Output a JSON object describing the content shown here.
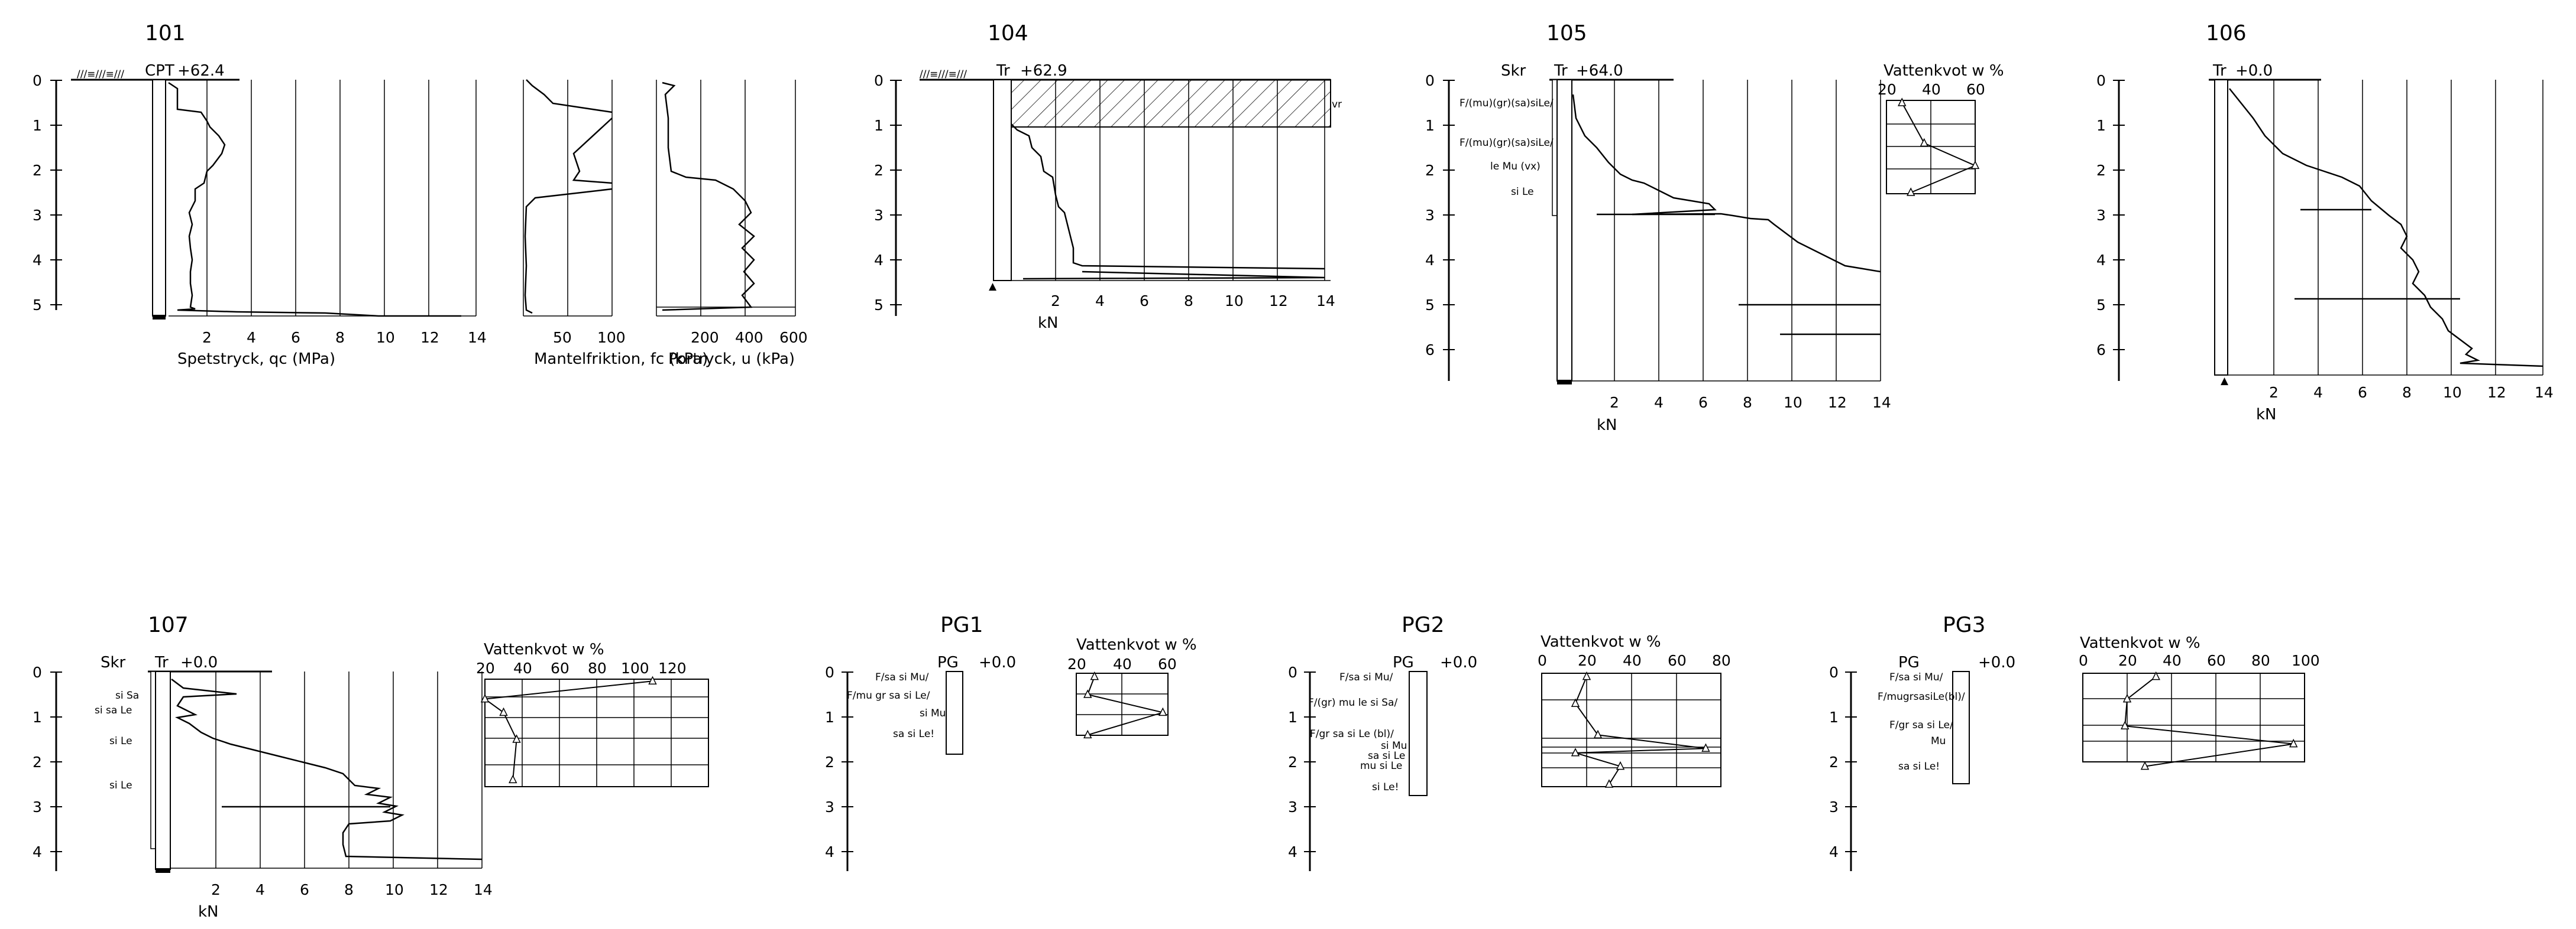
{
  "sheet_title": "",
  "labels": {
    "cpt": "CPT",
    "tr": "Tr",
    "skr": "Skr",
    "pg": "PG",
    "kn": "kN",
    "water": "Vattenkvot  w %",
    "wr": "vr",
    "qc": "Spetstryck, qc (MPa)",
    "fc": "Mantelfriktion, fc (kPa)",
    "u": "Portryck, u (kPa)"
  },
  "soundings": [
    {
      "id": "101",
      "type": "CPT",
      "elevation": "+62.4"
    },
    {
      "id": "104",
      "type": "Tr",
      "elevation": "+62.9"
    },
    {
      "id": "105",
      "type": "Skr/Tr",
      "elevation": "+64.0"
    },
    {
      "id": "106",
      "type": "Tr",
      "elevation": "+0.0"
    },
    {
      "id": "107",
      "type": "Skr/Tr",
      "elevation": "+0.0"
    },
    {
      "id": "PG1",
      "type": "PG",
      "elevation": "+0.0"
    },
    {
      "id": "PG2",
      "type": "PG",
      "elevation": "+0.0"
    },
    {
      "id": "PG3",
      "type": "PG",
      "elevation": "+0.0"
    }
  ],
  "depth_ticks": {
    "b101": [
      "0",
      "1",
      "2",
      "3",
      "4",
      "5"
    ],
    "b104": [
      "0",
      "1",
      "2",
      "3",
      "4",
      "5"
    ],
    "b105": [
      "0",
      "1",
      "2",
      "3",
      "4",
      "5",
      "6"
    ],
    "b106": [
      "0",
      "1",
      "2",
      "3",
      "4",
      "5",
      "6"
    ],
    "b107": [
      "0",
      "1",
      "2",
      "3",
      "4"
    ],
    "pg": [
      "0",
      "1",
      "2",
      "3",
      "4"
    ]
  },
  "x_ticks": {
    "kn": [
      "2",
      "4",
      "6",
      "8",
      "10",
      "12",
      "14"
    ],
    "qc": [
      "2",
      "4",
      "6",
      "8",
      "10",
      "12",
      "14"
    ],
    "fc": [
      "50",
      "100"
    ],
    "u": [
      "200",
      "400",
      "600"
    ],
    "w105": [
      "20",
      "40",
      "60"
    ],
    "w107": [
      "20",
      "40",
      "60",
      "80",
      "100",
      "120"
    ],
    "wpg1": [
      "20",
      "40",
      "60"
    ],
    "wpg2": [
      "0",
      "20",
      "40",
      "60",
      "80"
    ],
    "wpg3": [
      "0",
      "20",
      "40",
      "60",
      "80",
      "100"
    ]
  },
  "soil_layers": {
    "b105": [
      "F/(mu)(gr)(sa)siLe/",
      "F/(mu)(gr)(sa)siLe/",
      "le Mu (vx)",
      "si Le"
    ],
    "b107": [
      "si Sa",
      "si sa Le",
      "si Le",
      "si Le"
    ],
    "pg1": [
      "F/sa si Mu/",
      "F/mu gr sa si Le/",
      "si Mu",
      "sa si Le!"
    ],
    "pg2": [
      "F/sa si Mu/",
      "F/(gr) mu le si Sa/",
      "F/gr sa si Le (bl)/",
      "si Mu",
      "sa si Le",
      "mu si Le",
      "si Le!"
    ],
    "pg3": [
      "F/sa si Mu/",
      "F/mugrsasiLe(bl)/",
      "F/gr sa si Le/",
      "Mu",
      "sa si Le!"
    ]
  },
  "water_content": {
    "b105": {
      "depths": [
        0.5,
        1.4,
        1.9,
        2.5
      ],
      "values": [
        27,
        37,
        60,
        31
      ]
    },
    "b107": {
      "depths": [
        0.2,
        0.6,
        0.9,
        1.5,
        2.4
      ],
      "values": [
        110,
        20,
        30,
        37,
        35
      ]
    },
    "pg1": {
      "depths": [
        0.1,
        0.5,
        0.9,
        1.4
      ],
      "values": [
        28,
        25,
        58,
        25
      ]
    },
    "pg2": {
      "depths": [
        0.1,
        0.7,
        1.4,
        1.7,
        1.8,
        2.1,
        2.5
      ],
      "values": [
        20,
        15,
        25,
        73,
        15,
        35,
        30
      ]
    },
    "pg3": {
      "depths": [
        0.1,
        0.6,
        1.2,
        1.6,
        2.1
      ],
      "values": [
        33,
        20,
        19,
        95,
        28
      ]
    }
  }
}
